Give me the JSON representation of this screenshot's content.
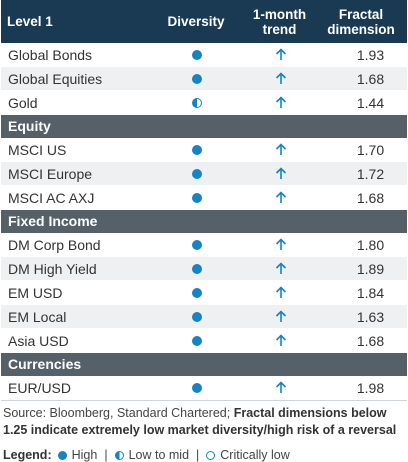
{
  "header": {
    "col1": "Level 1",
    "col2": "Diversity",
    "col3_line1": "1-month",
    "col3_line2": "trend",
    "col4_line1": "Fractal",
    "col4_line2": "dimension"
  },
  "groups": [
    {
      "title": "",
      "rows": [
        {
          "name": "Global Bonds",
          "diversity": "high",
          "trend": "up",
          "value": "1.93"
        },
        {
          "name": "Global Equities",
          "diversity": "high",
          "trend": "up",
          "value": "1.68"
        },
        {
          "name": "Gold",
          "diversity": "low-to-mid",
          "trend": "up",
          "value": "1.44"
        }
      ]
    },
    {
      "title": "Equity",
      "rows": [
        {
          "name": "MSCI US",
          "diversity": "high",
          "trend": "up",
          "value": "1.70"
        },
        {
          "name": "MSCI Europe",
          "diversity": "high",
          "trend": "up",
          "value": "1.72"
        },
        {
          "name": "MSCI AC AXJ",
          "diversity": "high",
          "trend": "up",
          "value": "1.68"
        }
      ]
    },
    {
      "title": "Fixed Income",
      "rows": [
        {
          "name": "DM Corp Bond",
          "diversity": "high",
          "trend": "up",
          "value": "1.80"
        },
        {
          "name": "DM High Yield",
          "diversity": "high",
          "trend": "up",
          "value": "1.89"
        },
        {
          "name": "EM USD",
          "diversity": "high",
          "trend": "up",
          "value": "1.84"
        },
        {
          "name": "EM Local",
          "diversity": "high",
          "trend": "up",
          "value": "1.63"
        },
        {
          "name": "Asia USD",
          "diversity": "high",
          "trend": "up",
          "value": "1.68"
        }
      ]
    },
    {
      "title": "Currencies",
      "rows": [
        {
          "name": "EUR/USD",
          "diversity": "high",
          "trend": "up",
          "value": "1.98"
        }
      ]
    }
  ],
  "footer": {
    "source_plain": "Source: Bloomberg, Standard Chartered; ",
    "source_bold": "Fractal dimensions below 1.25 indicate extremely low market diversity/high risk of a reversal",
    "legend_label": "Legend:",
    "legend_high": "High",
    "legend_mid": "Low to mid",
    "legend_low": "Critically low",
    "separator": "|"
  },
  "colors": {
    "header_bg": "#1a3a53",
    "section_bg": "#566068",
    "accent": "#1583c4",
    "row_alt": "#eef0f2"
  },
  "icons": {
    "high": "filled-circle-icon",
    "low-to-mid": "half-filled-circle-icon",
    "critically-low": "empty-circle-icon",
    "up": "up-arrow-icon"
  }
}
